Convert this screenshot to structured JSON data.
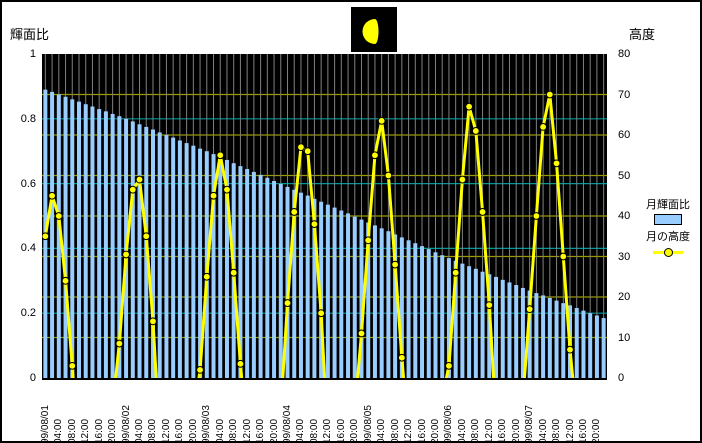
{
  "axes": {
    "left_title": "輝面比",
    "right_title": "高度",
    "left_ticks": [
      "1",
      "0.8",
      "0.6",
      "0.4",
      "0.2",
      "0"
    ],
    "right_ticks": [
      "80",
      "70",
      "60",
      "50",
      "40",
      "30",
      "20",
      "10",
      "0"
    ]
  },
  "legend": {
    "bar_label": "月輝面比",
    "line_label": "月の高度"
  },
  "colors": {
    "bar": "#99CCFF",
    "line": "#FFFF00",
    "marker_fill": "#FFFF00",
    "marker_stroke": "#000000",
    "grid_left_axis": "#009999",
    "grid_right_axis": "#999900",
    "grid_vertical": "#808080",
    "plot_background": "#000000",
    "moon_icon_bg": "#000000",
    "moon_icon_fill": "#FFFF00"
  },
  "chart_data": {
    "type": "combo",
    "x_start": "99/08/01 00:00",
    "x_step_hours": 2,
    "x_tick_labels": [
      "99/08/01",
      "04:00",
      "08:00",
      "12:00",
      "16:00",
      "20:00",
      "99/08/02",
      "04:00",
      "08:00",
      "12:00",
      "16:00",
      "20:00",
      "99/08/03",
      "04:00",
      "08:00",
      "12:00",
      "16:00",
      "20:00",
      "99/08/04",
      "04:00",
      "08:00",
      "12:00",
      "16:00",
      "20:00",
      "99/08/05",
      "04:00",
      "08:00",
      "12:00",
      "16:00",
      "20:00",
      "99/08/06",
      "04:00",
      "08:00",
      "12:00",
      "16:00",
      "20:00",
      "99/08/07",
      "04:00",
      "08:00",
      "12:00",
      "16:00",
      "20:00"
    ],
    "left_axis": {
      "label": "輝面比",
      "min": 0,
      "max": 1,
      "tick_step": 0.2
    },
    "right_axis": {
      "label": "高度",
      "min": 0,
      "max": 80,
      "tick_step": 10
    },
    "grid": true,
    "legend_position": "right",
    "series": [
      {
        "name": "月輝面比",
        "type": "bar",
        "axis": "left",
        "values": [
          0.89,
          0.883,
          0.875,
          0.868,
          0.86,
          0.853,
          0.845,
          0.838,
          0.83,
          0.823,
          0.815,
          0.808,
          0.8,
          0.792,
          0.783,
          0.775,
          0.767,
          0.758,
          0.75,
          0.742,
          0.733,
          0.725,
          0.717,
          0.708,
          0.7,
          0.691,
          0.682,
          0.673,
          0.663,
          0.654,
          0.645,
          0.636,
          0.627,
          0.618,
          0.608,
          0.599,
          0.59,
          0.581,
          0.572,
          0.563,
          0.553,
          0.544,
          0.535,
          0.526,
          0.517,
          0.508,
          0.498,
          0.489,
          0.48,
          0.471,
          0.462,
          0.453,
          0.443,
          0.434,
          0.425,
          0.416,
          0.407,
          0.398,
          0.388,
          0.379,
          0.37,
          0.362,
          0.353,
          0.345,
          0.337,
          0.328,
          0.32,
          0.312,
          0.303,
          0.295,
          0.287,
          0.278,
          0.27,
          0.262,
          0.255,
          0.247,
          0.239,
          0.231,
          0.224,
          0.216,
          0.208,
          0.2,
          0.193,
          0.185
        ]
      },
      {
        "name": "月の高度",
        "type": "line",
        "axis": "right",
        "note": "altitude in degrees every 2h; negative = below horizon (line clipped, no marker); null = not drawn",
        "values": [
          35,
          45,
          40,
          24,
          3,
          -20,
          null,
          null,
          null,
          null,
          -7,
          8.5,
          30.5,
          46.5,
          49,
          35,
          14,
          -15,
          null,
          null,
          null,
          null,
          -10,
          2,
          25,
          45,
          55,
          46.5,
          26,
          3.5,
          -15,
          null,
          null,
          null,
          null,
          -8,
          18.5,
          41,
          57,
          56,
          38,
          16,
          -15,
          null,
          null,
          null,
          -8,
          11,
          34,
          55,
          63.5,
          50,
          28,
          5,
          -15,
          null,
          null,
          null,
          null,
          -5,
          3,
          26,
          49,
          67,
          61,
          41,
          18,
          -10,
          null,
          null,
          null,
          -5,
          17,
          40,
          62,
          70,
          53,
          30,
          7,
          -10,
          null,
          null,
          null,
          null
        ]
      }
    ]
  }
}
